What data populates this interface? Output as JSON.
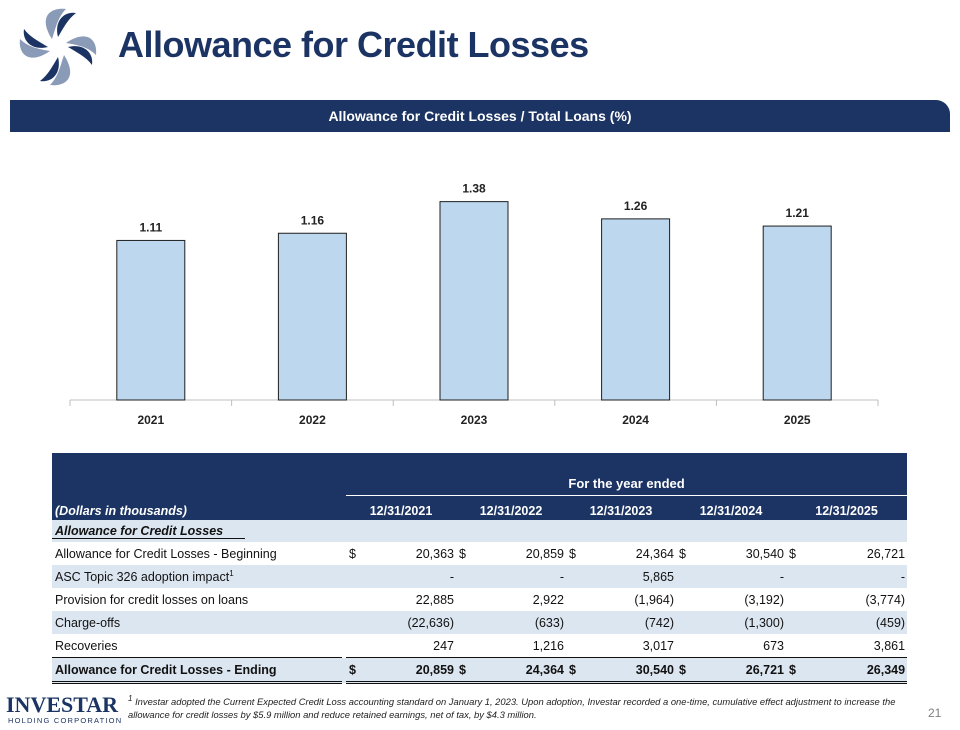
{
  "title": "Allowance for Credit Losses",
  "banner": "Allowance for Credit Losses / Total Loans (%)",
  "chart_data": {
    "type": "bar",
    "title": "Allowance for Credit Losses / Total Loans (%)",
    "categories": [
      "2021",
      "2022",
      "2023",
      "2024",
      "2025"
    ],
    "values": [
      1.11,
      1.16,
      1.38,
      1.26,
      1.21
    ],
    "value_labels": [
      "1.11",
      "1.16",
      "1.38",
      "1.26",
      "1.21"
    ],
    "ylim": [
      0,
      1.6
    ],
    "xlabel": "",
    "ylabel": "",
    "grid": false,
    "bar_color": "#bdd7ee"
  },
  "table": {
    "group_header": "For the year ended",
    "label_header": "(Dollars in thousands)",
    "columns": [
      "12/31/2021",
      "12/31/2022",
      "12/31/2023",
      "12/31/2024",
      "12/31/2025"
    ],
    "section": "Allowance for Credit Losses",
    "rows": [
      {
        "label": "Allowance for Credit Losses - Beginning",
        "sup": "",
        "cells": [
          {
            "cur": "$",
            "val": "20,363"
          },
          {
            "cur": "$",
            "val": "20,859"
          },
          {
            "cur": "$",
            "val": "24,364"
          },
          {
            "cur": "$",
            "val": "30,540"
          },
          {
            "cur": "$",
            "val": "26,721"
          }
        ]
      },
      {
        "label": "ASC Topic 326 adoption impact",
        "sup": "1",
        "cells": [
          {
            "cur": "",
            "val": "-"
          },
          {
            "cur": "",
            "val": "-"
          },
          {
            "cur": "",
            "val": "5,865"
          },
          {
            "cur": "",
            "val": "-"
          },
          {
            "cur": "",
            "val": "-"
          }
        ]
      },
      {
        "label": "Provision for credit losses on loans",
        "sup": "",
        "cells": [
          {
            "cur": "",
            "val": "22,885"
          },
          {
            "cur": "",
            "val": "2,922"
          },
          {
            "cur": "",
            "val": "(1,964)"
          },
          {
            "cur": "",
            "val": "(3,192)"
          },
          {
            "cur": "",
            "val": "(3,774)"
          }
        ]
      },
      {
        "label": "Charge-offs",
        "sup": "",
        "cells": [
          {
            "cur": "",
            "val": "(22,636)"
          },
          {
            "cur": "",
            "val": "(633)"
          },
          {
            "cur": "",
            "val": "(742)"
          },
          {
            "cur": "",
            "val": "(1,300)"
          },
          {
            "cur": "",
            "val": "(459)"
          }
        ]
      },
      {
        "label": "Recoveries",
        "sup": "",
        "cells": [
          {
            "cur": "",
            "val": "247"
          },
          {
            "cur": "",
            "val": "1,216"
          },
          {
            "cur": "",
            "val": "3,017"
          },
          {
            "cur": "",
            "val": "673"
          },
          {
            "cur": "",
            "val": "3,861"
          }
        ]
      }
    ],
    "ending": {
      "label": "Allowance for Credit Losses - Ending",
      "cells": [
        {
          "cur": "$",
          "val": "20,859"
        },
        {
          "cur": "$",
          "val": "24,364"
        },
        {
          "cur": "$",
          "val": "30,540"
        },
        {
          "cur": "$",
          "val": "26,721"
        },
        {
          "cur": "$",
          "val": "26,349"
        }
      ]
    }
  },
  "footnote": {
    "sup": "1",
    "text": "Investar adopted the Current Expected Credit Loss accounting standard on January 1, 2023. Upon adoption, Investar recorded a one-time, cumulative effect adjustment to increase the allowance for credit losses by $5.9 million and reduce retained earnings, net of tax, by $4.3 million."
  },
  "footer_logo": {
    "name": "INVESTAR",
    "sub": "HOLDING CORPORATION"
  },
  "page_number": "21",
  "colors": {
    "navy": "#1c3464",
    "bar": "#bdd7ee",
    "shade": "#dce6f1"
  }
}
